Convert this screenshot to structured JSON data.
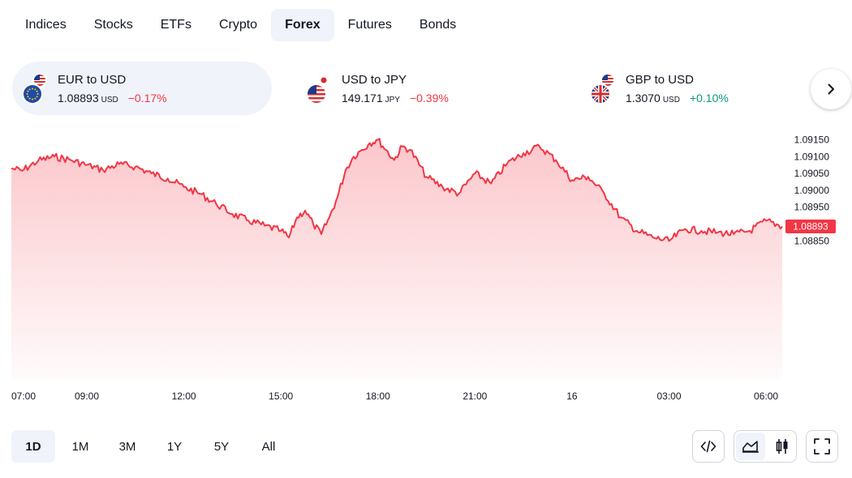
{
  "tabs": [
    {
      "label": "Indices",
      "active": false
    },
    {
      "label": "Stocks",
      "active": false
    },
    {
      "label": "ETFs",
      "active": false
    },
    {
      "label": "Crypto",
      "active": false
    },
    {
      "label": "Forex",
      "active": true
    },
    {
      "label": "Futures",
      "active": false
    },
    {
      "label": "Bonds",
      "active": false
    }
  ],
  "tickers": [
    {
      "name": "EUR to USD",
      "price": "1.08893",
      "currency": "USD",
      "change": "−0.17%",
      "direction": "down",
      "flags": [
        "us-flag",
        "eu-flag"
      ],
      "active": true
    },
    {
      "name": "USD to JPY",
      "price": "149.171",
      "currency": "JPY",
      "change": "−0.39%",
      "direction": "down",
      "flags": [
        "jp-flag",
        "us-flag"
      ],
      "active": false
    },
    {
      "name": "GBP to USD",
      "price": "1.3070",
      "currency": "USD",
      "change": "+0.10%",
      "direction": "up",
      "flags": [
        "us-flag",
        "gb-flag"
      ],
      "active": false
    }
  ],
  "next_icon": "chevron-right-icon",
  "colors": {
    "accent_red": "#f23645",
    "accent_green": "#089981",
    "active_bg": "#f0f3fa",
    "line": "#f23645"
  },
  "chart_data": {
    "type": "area",
    "title": "",
    "xlabel": "",
    "ylabel": "",
    "x_ticks": [
      "07:00",
      "09:00",
      "12:00",
      "15:00",
      "18:00",
      "21:00",
      "16",
      "03:00",
      "06:00"
    ],
    "y_ticks": [
      "1.09150",
      "1.09100",
      "1.09050",
      "1.09000",
      "1.08950",
      "1.08900",
      "1.08850"
    ],
    "y_tick_values": [
      1.0915,
      1.091,
      1.0905,
      1.09,
      1.0895,
      1.089,
      1.0885
    ],
    "ylim": [
      1.0844,
      1.0918
    ],
    "last_value_label": "1.08893",
    "last_value": 1.08893,
    "grid": false,
    "series": [
      {
        "x": [
          "06:40",
          "07:00",
          "07:30",
          "08:00",
          "08:30",
          "09:00",
          "09:30",
          "10:00",
          "10:30",
          "11:00",
          "11:30",
          "12:00",
          "12:30",
          "13:00",
          "13:30",
          "14:00",
          "14:30",
          "15:00",
          "15:15",
          "15:30",
          "15:45",
          "16:00",
          "16:15",
          "16:30",
          "16:45",
          "17:00",
          "17:15",
          "17:30",
          "17:45",
          "18:00",
          "18:15",
          "18:30",
          "18:45",
          "19:00",
          "19:30",
          "20:00",
          "20:30",
          "21:00",
          "21:30",
          "22:00",
          "22:30",
          "23:00",
          "23:30",
          "00:00",
          "00:30",
          "01:00",
          "01:30",
          "02:00",
          "02:30",
          "03:00",
          "03:30",
          "04:00",
          "04:30",
          "05:00",
          "05:30",
          "06:00",
          "06:30"
        ],
        "values": [
          1.09065,
          1.09058,
          1.09088,
          1.091,
          1.0909,
          1.09075,
          1.0906,
          1.09078,
          1.0907,
          1.0905,
          1.09035,
          1.0901,
          1.0899,
          1.0896,
          1.0893,
          1.0891,
          1.08895,
          1.0888,
          1.0886,
          1.0892,
          1.0894,
          1.089,
          1.0887,
          1.0892,
          1.0898,
          1.0906,
          1.091,
          1.0912,
          1.0914,
          1.0915,
          1.0912,
          1.0909,
          1.0913,
          1.0912,
          1.0904,
          1.0901,
          1.0899,
          1.0905,
          1.0902,
          1.0908,
          1.0911,
          1.0913,
          1.0909,
          1.0903,
          1.0904,
          1.0899,
          1.0892,
          1.0888,
          1.0886,
          1.0885,
          1.08885,
          1.0888,
          1.08875,
          1.0887,
          1.0888,
          1.0891,
          1.08893
        ]
      }
    ]
  },
  "ranges": [
    {
      "label": "1D",
      "active": true
    },
    {
      "label": "1M",
      "active": false
    },
    {
      "label": "3M",
      "active": false
    },
    {
      "label": "1Y",
      "active": false
    },
    {
      "label": "5Y",
      "active": false
    },
    {
      "label": "All",
      "active": false
    }
  ],
  "tools": {
    "embed_icon": "code-icon",
    "area_icon": "area-chart-icon",
    "candle_icon": "candlestick-icon",
    "fullscreen_icon": "fullscreen-icon"
  }
}
